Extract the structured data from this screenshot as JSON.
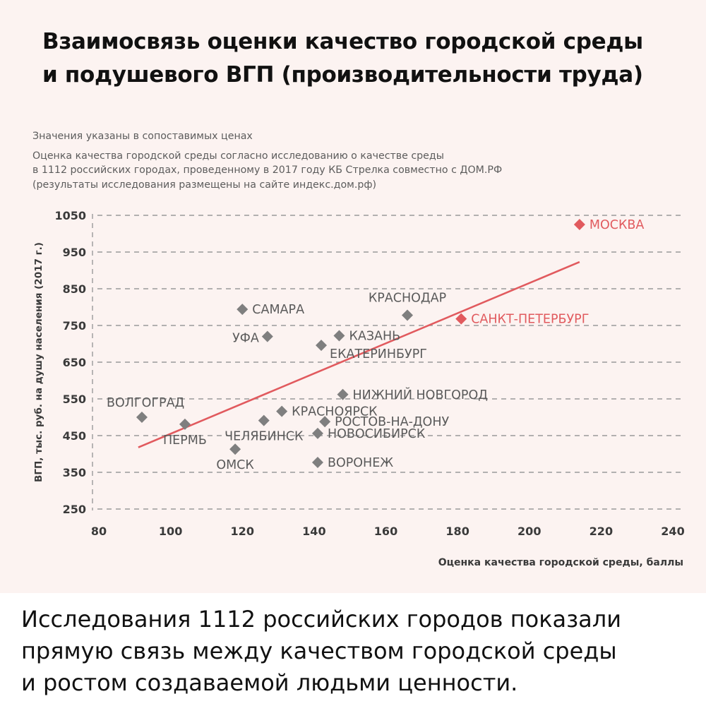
{
  "headline": {
    "line1": "Взаимосвязь оценки качество городской среды",
    "line2": "и подушевого ВГП (производительности труда)"
  },
  "notes": {
    "line1": "Значения указаны в сопоставимых ценах",
    "line2": "Оценка качества городской среды согласно исследованию о качестве среды",
    "line3": "в 1112 российских городах, проведенному в 2017 году КБ Стрелка совместно с ДОМ.РФ",
    "line4": "(результаты исследования размещены на сайте индекс.дом.рф)"
  },
  "chart_data": {
    "type": "scatter",
    "xlabel": "Оценка качества городской среды, баллы",
    "ylabel": "ВГП, тыс. руб. на душу населения (2017 г.)",
    "xlim": [
      80,
      240
    ],
    "ylim": [
      250,
      1050
    ],
    "xticks": [
      80,
      100,
      120,
      140,
      160,
      180,
      200,
      220,
      240
    ],
    "yticks": [
      1050,
      950,
      850,
      750,
      650,
      550,
      450,
      350,
      250
    ],
    "grid": "horizontal dashed",
    "colors": {
      "default": "#7f7f7f",
      "highlight": "#e15a5e",
      "trend": "#e15a5e",
      "text": "#5a5a5a"
    },
    "points": [
      {
        "label": "МОСКВА",
        "x": 214,
        "y": 1025,
        "highlight": true,
        "label_side": "right"
      },
      {
        "label": "САНКТ-ПЕТЕРБУРГ",
        "x": 181,
        "y": 768,
        "highlight": true,
        "label_side": "right"
      },
      {
        "label": "КРАСНОДАР",
        "x": 166,
        "y": 778,
        "highlight": false,
        "label_side": "above"
      },
      {
        "label": "САМАРА",
        "x": 120,
        "y": 794,
        "highlight": false,
        "label_side": "right"
      },
      {
        "label": "КАЗАНЬ",
        "x": 147,
        "y": 722,
        "highlight": false,
        "label_side": "right"
      },
      {
        "label": "УФА",
        "x": 127,
        "y": 720,
        "highlight": false,
        "label_side": "left"
      },
      {
        "label": "ЕКАТЕРИНБУРГ",
        "x": 142,
        "y": 696,
        "highlight": false,
        "label_side": "below-right"
      },
      {
        "label": "НИЖНИЙ НОВГОРОД",
        "x": 148,
        "y": 562,
        "highlight": false,
        "label_side": "right"
      },
      {
        "label": "ВОЛГОГРАД",
        "x": 92,
        "y": 500,
        "highlight": false,
        "label_side": "above-right"
      },
      {
        "label": "КРАСНОЯРСК",
        "x": 131,
        "y": 516,
        "highlight": false,
        "label_side": "right"
      },
      {
        "label": "ПЕРМЬ",
        "x": 104,
        "y": 481,
        "highlight": false,
        "label_side": "below"
      },
      {
        "label": "ЧЕЛЯБИНСК",
        "x": 126,
        "y": 491,
        "highlight": false,
        "label_side": "below"
      },
      {
        "label": "РОСТОВ-НА-ДОНУ",
        "x": 143,
        "y": 488,
        "highlight": false,
        "label_side": "right"
      },
      {
        "label": "НОВОСИБИРСК",
        "x": 141,
        "y": 456,
        "highlight": false,
        "label_side": "right"
      },
      {
        "label": "ОМСК",
        "x": 118,
        "y": 413,
        "highlight": false,
        "label_side": "below"
      },
      {
        "label": "ВОРОНЕЖ",
        "x": 141,
        "y": 377,
        "highlight": false,
        "label_side": "right"
      }
    ],
    "trendline": {
      "x1": 91,
      "y1": 418,
      "x2": 214,
      "y2": 923
    }
  },
  "footer": {
    "line1": "Исследования 1112 российских городов показали",
    "line2": "прямую связь между качеством городской среды",
    "line3": "и ростом создаваемой людьми ценности."
  }
}
